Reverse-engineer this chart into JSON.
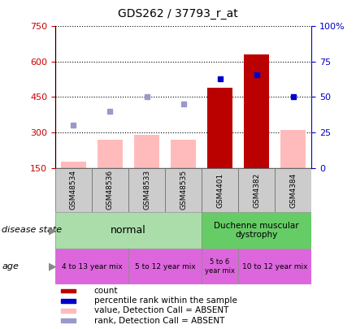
{
  "title": "GDS262 / 37793_r_at",
  "samples": [
    "GSM48534",
    "GSM48536",
    "GSM48533",
    "GSM48535",
    "GSM4401",
    "GSM4382",
    "GSM4384"
  ],
  "count_values": [
    null,
    null,
    null,
    null,
    490,
    630,
    null
  ],
  "count_absent_values": [
    175,
    270,
    290,
    270,
    null,
    null,
    310
  ],
  "percentile_values": [
    null,
    null,
    null,
    null,
    63,
    66,
    50
  ],
  "rank_absent_values": [
    330,
    390,
    450,
    420,
    null,
    null,
    null
  ],
  "ylim_left": [
    150,
    750
  ],
  "ylim_right": [
    0,
    100
  ],
  "yticks_left": [
    150,
    300,
    450,
    600,
    750
  ],
  "yticks_right": [
    0,
    25,
    50,
    75,
    100
  ],
  "left_axis_color": "#cc0000",
  "right_axis_color": "#0000cc",
  "bar_color_count": "#bb0000",
  "bar_color_absent_value": "#ffbbbb",
  "dot_color_percentile": "#0000cc",
  "dot_color_rank_absent": "#9999cc",
  "sample_box_color": "#cccccc",
  "disease_state_normal_color": "#aaddaa",
  "disease_state_dmd_color": "#66cc66",
  "age_color": "#dd66dd",
  "legend_items": [
    {
      "label": "count",
      "color": "#bb0000"
    },
    {
      "label": "percentile rank within the sample",
      "color": "#0000cc"
    },
    {
      "label": "value, Detection Call = ABSENT",
      "color": "#ffbbbb"
    },
    {
      "label": "rank, Detection Call = ABSENT",
      "color": "#9999cc"
    }
  ]
}
